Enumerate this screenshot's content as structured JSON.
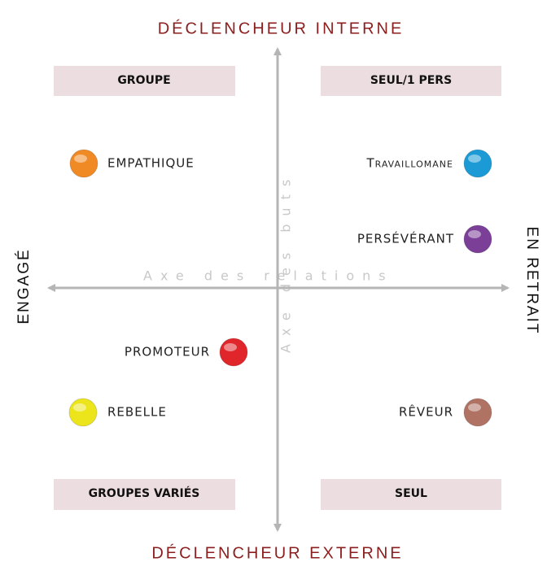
{
  "top_label": "DÉCLENCHEUR INTERNE",
  "bottom_label": "DÉCLENCHEUR EXTERNE",
  "left_label": "ENGAGÉ",
  "right_label": "EN RETRAIT",
  "horizontal_axis": "Axe des relations",
  "vertical_axis": "Axe des buts",
  "quadrants": [
    "GROUPE",
    "SEUL/1 PERS",
    "GROUPES VARIÉS",
    "SEUL"
  ],
  "types": [
    {
      "label": "EMPATHIQUE",
      "color": "#f08a24"
    },
    {
      "label": "Travaillomane",
      "color": "#1b9ad6"
    },
    {
      "label": "PERSÉVÉRANT",
      "color": "#7b3f98"
    },
    {
      "label": "PROMOTEUR",
      "color": "#e0262a"
    },
    {
      "label": "REBELLE",
      "color": "#ece51c"
    },
    {
      "label": "RÊVEUR",
      "color": "#b07262"
    }
  ]
}
